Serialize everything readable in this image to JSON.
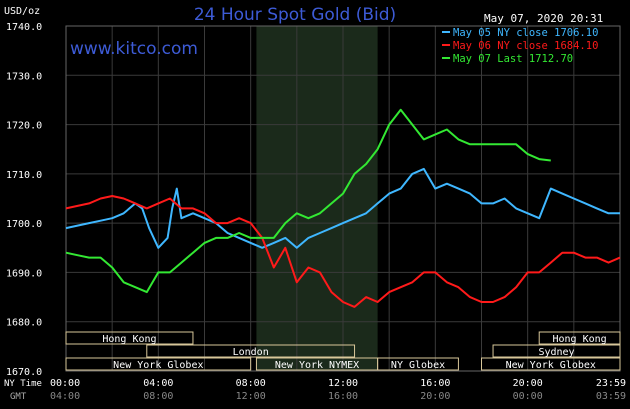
{
  "header": {
    "unit": "USD/oz",
    "title": "24 Hour Spot Gold (Bid)",
    "timestamp": "May 07, 2020 20:31",
    "watermark": "www.kitco.com"
  },
  "colors": {
    "background": "#000000",
    "plot_bg": "#000000",
    "grid": "#3a3a3a",
    "highlight_band": "#1b2a1b",
    "axis_text": "#ffffff",
    "title": "#3d5bd6",
    "watermark": "#3d5bd6",
    "series_may05": "#3fb7ff",
    "series_may06": "#ff1a1a",
    "series_may07": "#33e833",
    "session_box": "#d8c79a",
    "session_text": "#ffffff"
  },
  "labels": {
    "nytime": "NY Time",
    "gmt": "GMT"
  },
  "sessions": [
    {
      "label": "Hong Kong",
      "start": 0,
      "end": 5.5,
      "row": 0
    },
    {
      "label": "London",
      "start": 3.5,
      "end": 12.5,
      "row": 1
    },
    {
      "label": "New York Globex",
      "start": 0,
      "end": 8,
      "row": 2
    },
    {
      "label": "New York NYMEX",
      "start": 8.25,
      "end": 13.5,
      "row": 2
    },
    {
      "label": "NY Globex",
      "start": 13.5,
      "end": 17,
      "row": 2
    },
    {
      "label": "Hong Kong",
      "start": 20.5,
      "end": 24,
      "row": 0
    },
    {
      "label": "Sydney",
      "start": 18.5,
      "end": 24,
      "row": 1
    },
    {
      "label": "New York Globex",
      "start": 18,
      "end": 24,
      "row": 2
    }
  ],
  "chart_data": {
    "type": "line",
    "title": "24 Hour Spot Gold (Bid)",
    "ylabel": "USD/oz",
    "ylim": [
      1670,
      1740
    ],
    "xlim": [
      0,
      24
    ],
    "grid": true,
    "legend_position": "top-right",
    "yticks": [
      1670,
      1680,
      1690,
      1700,
      1710,
      1720,
      1730,
      1740
    ],
    "ytick_labels": [
      "1670.0",
      "1680.0",
      "1690.0",
      "1700.0",
      "1710.0",
      "1720.0",
      "1730.0",
      "1740.0"
    ],
    "xticks_nytime": [
      "00:00",
      "04:00",
      "08:00",
      "12:00",
      "16:00",
      "20:00",
      "23:59"
    ],
    "xticks_gmt": [
      "04:00",
      "08:00",
      "12:00",
      "16:00",
      "20:00",
      "00:00",
      "03:59"
    ],
    "highlight_range": [
      8.25,
      13.5
    ],
    "series": [
      {
        "name": "May 05 NY close 1706.10",
        "x": [
          0,
          0.5,
          1,
          1.5,
          2,
          2.5,
          3,
          3.3,
          3.6,
          4,
          4.2,
          4.4,
          4.6,
          4.8,
          5,
          5.5,
          6,
          6.5,
          7,
          7.5,
          8,
          8.5,
          9,
          9.5,
          10,
          10.5,
          11,
          11.5,
          12,
          12.5,
          13,
          13.5,
          14,
          14.5,
          15,
          15.5,
          16,
          16.5,
          17,
          17.5,
          18,
          18.5,
          19,
          19.5,
          20,
          20.5,
          21,
          21.5,
          22,
          22.5,
          23,
          23.5,
          24
        ],
        "values": [
          1699,
          1699.5,
          1700,
          1700.5,
          1701,
          1702,
          1704,
          1703,
          1699,
          1695,
          1696,
          1697,
          1703,
          1707,
          1701,
          1702,
          1701,
          1700,
          1698,
          1697,
          1696,
          1695,
          1696,
          1697,
          1695,
          1697,
          1698,
          1699,
          1700,
          1701,
          1702,
          1704,
          1706,
          1707,
          1710,
          1711,
          1707,
          1708,
          1707,
          1706,
          1704,
          1704,
          1705,
          1703,
          1702,
          1701,
          1707,
          1706,
          1705,
          1704,
          1703,
          1702,
          1702
        ]
      },
      {
        "name": "May 06 NY close 1684.10",
        "x": [
          0,
          0.5,
          1,
          1.5,
          2,
          2.5,
          3,
          3.5,
          4,
          4.5,
          5,
          5.5,
          6,
          6.5,
          7,
          7.5,
          8,
          8.5,
          9,
          9.5,
          10,
          10.5,
          11,
          11.5,
          12,
          12.5,
          13,
          13.5,
          14,
          14.5,
          15,
          15.5,
          16,
          16.5,
          17,
          17.5,
          18,
          18.5,
          19,
          19.5,
          20,
          20.5,
          21,
          21.5,
          22,
          22.5,
          23,
          23.5,
          24
        ],
        "values": [
          1703,
          1703.5,
          1704,
          1705,
          1705.5,
          1705,
          1704,
          1703,
          1704,
          1705,
          1703,
          1703,
          1702,
          1700,
          1700,
          1701,
          1700,
          1697,
          1691,
          1695,
          1688,
          1691,
          1690,
          1686,
          1684,
          1683,
          1685,
          1684,
          1686,
          1687,
          1688,
          1690,
          1690,
          1688,
          1687,
          1685,
          1684,
          1684,
          1685,
          1687,
          1690,
          1690,
          1692,
          1694,
          1694,
          1693,
          1693,
          1692,
          1693
        ]
      },
      {
        "name": "May 07 Last 1712.70",
        "x": [
          0,
          0.5,
          1,
          1.5,
          2,
          2.5,
          3,
          3.5,
          4,
          4.5,
          5,
          5.5,
          6,
          6.5,
          7,
          7.5,
          8,
          8.5,
          9,
          9.5,
          10,
          10.5,
          11,
          11.5,
          12,
          12.5,
          13,
          13.5,
          14,
          14.5,
          15,
          15.5,
          16,
          16.5,
          17,
          17.5,
          18,
          18.5,
          19,
          19.5,
          20,
          20.5,
          21
        ],
        "values": [
          1694,
          1693.5,
          1693,
          1693,
          1691,
          1688,
          1687,
          1686,
          1690,
          1690,
          1692,
          1694,
          1696,
          1697,
          1697,
          1698,
          1697,
          1697,
          1697,
          1700,
          1702,
          1701,
          1702,
          1704,
          1706,
          1710,
          1712,
          1715,
          1720,
          1723,
          1720,
          1717,
          1718,
          1719,
          1717,
          1716,
          1716,
          1716,
          1716,
          1716,
          1714,
          1713,
          1712.7
        ]
      }
    ]
  }
}
